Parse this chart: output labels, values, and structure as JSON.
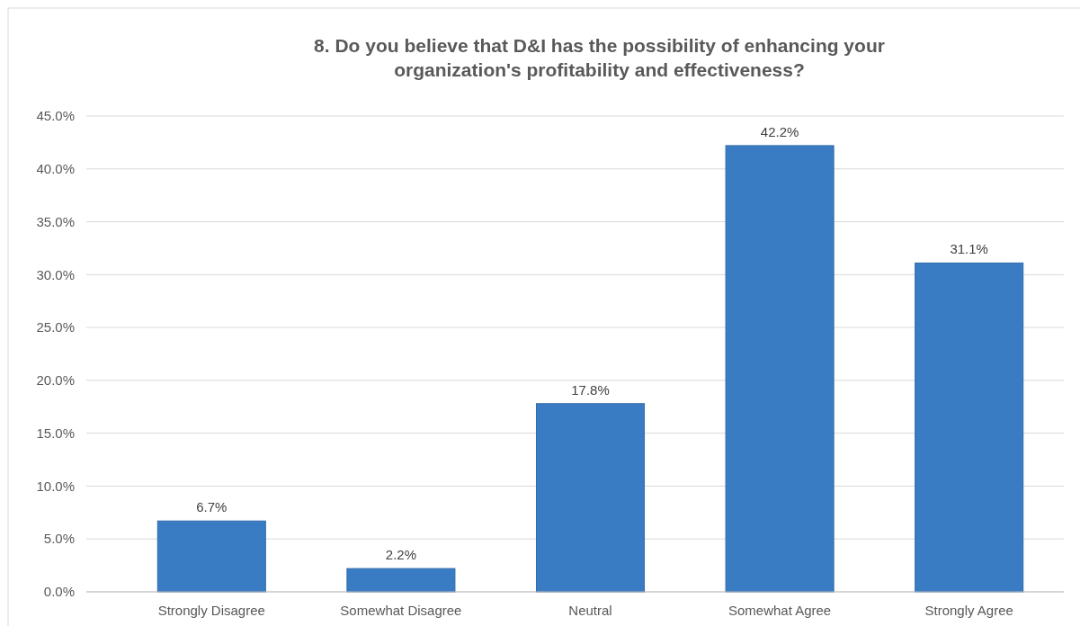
{
  "chart_data": {
    "type": "bar",
    "title": "8. Do you believe that D&I has the possibility of enhancing your organization's profitability and effectiveness?",
    "categories": [
      "Strongly Disagree",
      "Somewhat Disagree",
      "Neutral",
      "Somewhat Agree",
      "Strongly Agree"
    ],
    "values": [
      6.7,
      2.2,
      17.8,
      42.2,
      31.1
    ],
    "value_labels": [
      "6.7%",
      "2.2%",
      "17.8%",
      "42.2%",
      "31.1%"
    ],
    "color": "#3a7cc3",
    "ylim": [
      0,
      45
    ],
    "yticks": [
      {
        "value": 0,
        "label": "0.0%"
      },
      {
        "value": 5,
        "label": "5.0%"
      },
      {
        "value": 10,
        "label": "10.0%"
      },
      {
        "value": 15,
        "label": "15.0%"
      },
      {
        "value": 20,
        "label": "20.0%"
      },
      {
        "value": 25,
        "label": "25.0%"
      },
      {
        "value": 30,
        "label": "30.0%"
      },
      {
        "value": 35,
        "label": "35.0%"
      },
      {
        "value": 40,
        "label": "40.0%"
      },
      {
        "value": 45,
        "label": "45.0%"
      }
    ],
    "grid": "y"
  }
}
